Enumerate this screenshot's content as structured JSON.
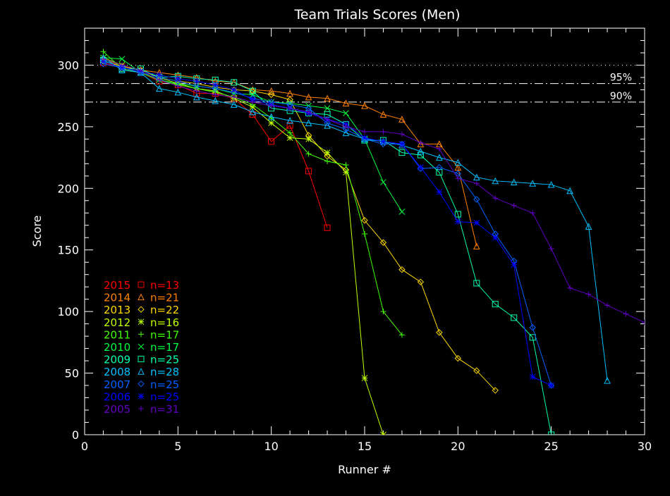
{
  "chart_data": {
    "type": "line",
    "title": "Team Trials Scores (Men)",
    "xlabel": "Runner #",
    "ylabel": "Score",
    "xlim": [
      0,
      30
    ],
    "ylim": [
      0,
      330
    ],
    "xticks": [
      0,
      5,
      10,
      15,
      20,
      25,
      30
    ],
    "yticks": [
      0,
      50,
      100,
      150,
      200,
      250,
      300
    ],
    "legend_position": "bottom-left",
    "reference_lines": [
      {
        "value": 300,
        "style": "dotted",
        "label": ""
      },
      {
        "value": 285,
        "style": "dash-dot",
        "label": "95%"
      },
      {
        "value": 270,
        "style": "dash-dot",
        "label": "90%"
      }
    ],
    "series": [
      {
        "name": "2015",
        "n_label": "n=13",
        "marker": "square",
        "color": "#ff0000",
        "values": [
          302,
          298,
          294,
          287,
          284,
          277,
          277,
          273,
          260,
          238,
          251,
          214,
          168
        ]
      },
      {
        "name": "2014",
        "n_label": "n=21",
        "marker": "triangle",
        "color": "#ff8000",
        "values": [
          305,
          299,
          296,
          294,
          292,
          290,
          287,
          286,
          280,
          279,
          277,
          274,
          273,
          269,
          267,
          260,
          256,
          236,
          236,
          217,
          153
        ]
      },
      {
        "name": "2013",
        "n_label": "n=22",
        "marker": "diamond",
        "color": "#ffd800",
        "values": [
          303,
          299,
          296,
          290,
          287,
          285,
          282,
          280,
          279,
          276,
          272,
          243,
          226,
          215,
          174,
          156,
          134,
          124,
          83,
          62,
          52,
          36
        ]
      },
      {
        "name": "2012",
        "n_label": "n=16",
        "marker": "asterisk",
        "color": "#c0ff00",
        "values": [
          306,
          300,
          296,
          290,
          285,
          281,
          279,
          273,
          266,
          253,
          241,
          240,
          229,
          213,
          46,
          0
        ]
      },
      {
        "name": "2011",
        "n_label": "n=17",
        "marker": "plus",
        "color": "#40ff00",
        "values": [
          311,
          297,
          294,
          288,
          284,
          281,
          278,
          274,
          268,
          257,
          245,
          228,
          222,
          219,
          163,
          100,
          81
        ]
      },
      {
        "name": "2010",
        "n_label": "n=17",
        "marker": "x",
        "color": "#00ff40",
        "values": [
          306,
          305,
          294,
          288,
          285,
          283,
          281,
          277,
          276,
          270,
          269,
          267,
          265,
          261,
          240,
          205,
          181
        ]
      },
      {
        "name": "2009",
        "n_label": "n=25",
        "marker": "square",
        "color": "#00ffb0",
        "values": [
          304,
          297,
          297,
          290,
          291,
          289,
          288,
          286,
          279,
          265,
          263,
          261,
          260,
          252,
          239,
          239,
          229,
          227,
          213,
          179,
          123,
          106,
          95,
          79,
          0
        ]
      },
      {
        "name": "2008",
        "n_label": "n=28",
        "marker": "triangle",
        "color": "#00c0ff",
        "values": [
          306,
          296,
          294,
          281,
          278,
          274,
          271,
          268,
          262,
          258,
          255,
          253,
          251,
          245,
          240,
          238,
          235,
          230,
          225,
          221,
          209,
          206,
          205,
          204,
          203,
          198,
          169,
          44
        ]
      },
      {
        "name": "2007",
        "n_label": "n=25",
        "marker": "diamond",
        "color": "#0060ff",
        "values": [
          301,
          298,
          294,
          290,
          287,
          283,
          281,
          278,
          273,
          270,
          268,
          265,
          253,
          248,
          240,
          236,
          236,
          216,
          217,
          212,
          191,
          163,
          141,
          87,
          40
        ]
      },
      {
        "name": "2006",
        "n_label": "n=25",
        "marker": "asterisk",
        "color": "#0000ff",
        "values": [
          303,
          298,
          295,
          292,
          289,
          287,
          284,
          280,
          272,
          268,
          265,
          261,
          256,
          252,
          241,
          238,
          236,
          217,
          197,
          173,
          172,
          160,
          138,
          47,
          40
        ]
      },
      {
        "name": "2005",
        "n_label": "n=31",
        "marker": "plus",
        "color": "#6000c0",
        "values": [
          305,
          300,
          296,
          288,
          283,
          279,
          276,
          274,
          270,
          267,
          265,
          262,
          256,
          250,
          246,
          246,
          244,
          237,
          232,
          208,
          204,
          192,
          186,
          180,
          151,
          119,
          114,
          105,
          98,
          91,
          84
        ]
      }
    ]
  }
}
